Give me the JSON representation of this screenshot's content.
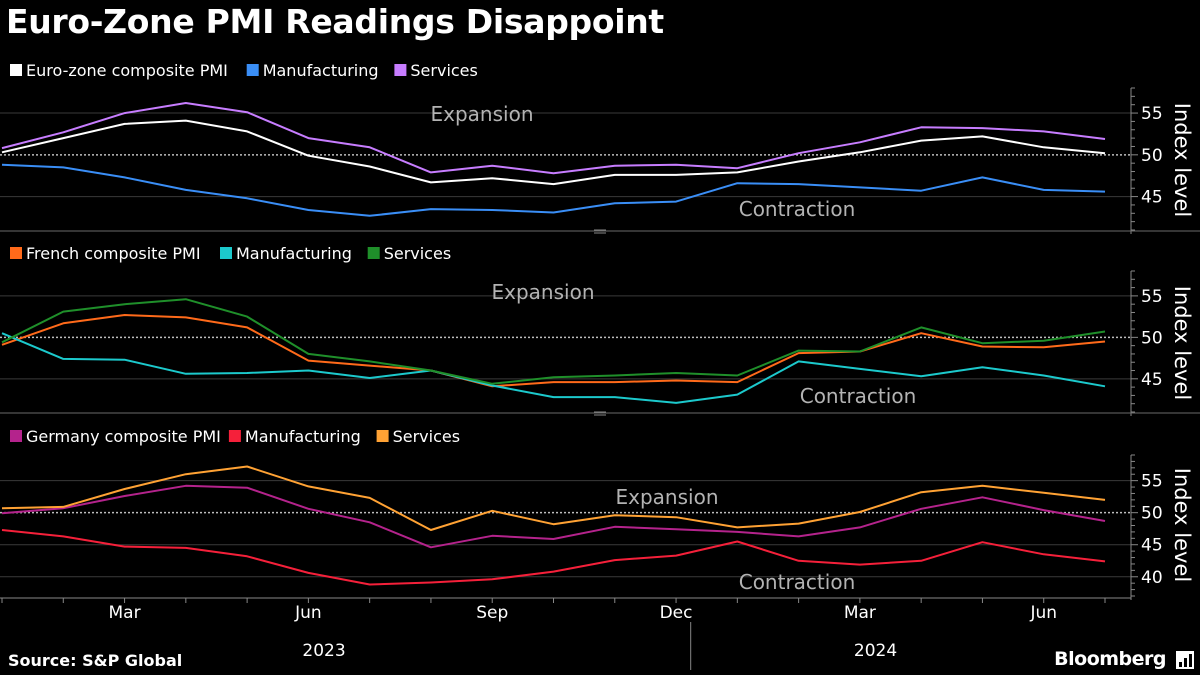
{
  "title": "Euro-Zone PMI Readings Disappoint",
  "source": "Source: S&P Global",
  "brand": "Bloomberg",
  "brand_icon": "bloomberg-terminal-icon",
  "chart_data": [
    {
      "type": "line",
      "ylabel": "Index level",
      "yticks": [
        45,
        50,
        55
      ],
      "ylim": [
        41,
        58
      ],
      "reference_line": 50,
      "annotations": {
        "above": "Expansion",
        "below": "Contraction"
      },
      "series": [
        {
          "name": "Euro-zone composite PMI",
          "color": "#ffffff",
          "values": [
            50.3,
            52.0,
            53.7,
            54.1,
            52.8,
            49.9,
            48.6,
            46.7,
            47.2,
            46.5,
            47.6,
            47.6,
            47.9,
            49.2,
            50.3,
            51.7,
            52.2,
            50.9,
            50.2
          ]
        },
        {
          "name": "Manufacturing",
          "color": "#3a8ef6",
          "values": [
            48.8,
            48.5,
            47.3,
            45.8,
            44.8,
            43.4,
            42.7,
            43.5,
            43.4,
            43.1,
            44.2,
            44.4,
            46.6,
            46.5,
            46.1,
            45.7,
            47.3,
            45.8,
            45.6
          ]
        },
        {
          "name": "Services",
          "color": "#c77dff",
          "values": [
            50.8,
            52.7,
            55.0,
            56.2,
            55.1,
            52.0,
            50.9,
            47.9,
            48.7,
            47.8,
            48.7,
            48.8,
            48.4,
            50.2,
            51.5,
            53.3,
            53.2,
            52.8,
            51.9
          ]
        }
      ]
    },
    {
      "type": "line",
      "ylabel": "Index level",
      "yticks": [
        45,
        50,
        55
      ],
      "ylim": [
        41,
        58
      ],
      "reference_line": 50,
      "annotations": {
        "above": "Expansion",
        "below": "Contraction"
      },
      "series": [
        {
          "name": "French composite PMI",
          "color": "#ff6a1a",
          "values": [
            49.1,
            51.7,
            52.7,
            52.4,
            51.2,
            47.2,
            46.6,
            46.0,
            44.1,
            44.6,
            44.6,
            44.8,
            44.6,
            48.1,
            48.3,
            50.5,
            48.9,
            48.8,
            49.5
          ]
        },
        {
          "name": "Manufacturing",
          "color": "#1cc9cc",
          "values": [
            50.5,
            47.4,
            47.3,
            45.6,
            45.7,
            46.0,
            45.1,
            46.0,
            44.2,
            42.8,
            42.8,
            42.1,
            43.1,
            47.1,
            46.2,
            45.3,
            46.4,
            45.4,
            44.1
          ]
        },
        {
          "name": "Services",
          "color": "#1f8f2a",
          "values": [
            49.4,
            53.1,
            54.0,
            54.6,
            52.5,
            48.0,
            47.1,
            46.0,
            44.4,
            45.2,
            45.4,
            45.7,
            45.4,
            48.4,
            48.3,
            51.2,
            49.3,
            49.6,
            50.7
          ]
        }
      ]
    },
    {
      "type": "line",
      "ylabel": "Index level",
      "yticks": [
        40,
        45,
        50,
        55
      ],
      "ylim": [
        37,
        59
      ],
      "reference_line": 50,
      "annotations": {
        "above": "Expansion",
        "below": "Contraction"
      },
      "series": [
        {
          "name": "Germany composite PMI",
          "color": "#b4238c",
          "values": [
            49.9,
            50.7,
            52.6,
            54.2,
            53.9,
            50.6,
            48.5,
            44.6,
            46.4,
            45.9,
            47.8,
            47.4,
            47.0,
            46.3,
            47.7,
            50.6,
            52.4,
            50.4,
            48.7
          ]
        },
        {
          "name": "Manufacturing",
          "color": "#f5203a",
          "values": [
            47.3,
            46.3,
            44.7,
            44.5,
            43.2,
            40.6,
            38.8,
            39.1,
            39.6,
            40.8,
            42.6,
            43.3,
            45.5,
            42.5,
            41.9,
            42.5,
            45.4,
            43.5,
            42.4
          ]
        },
        {
          "name": "Services",
          "color": "#ffa234",
          "values": [
            50.7,
            50.9,
            53.7,
            56.0,
            57.2,
            54.1,
            52.3,
            47.3,
            50.3,
            48.2,
            49.6,
            49.3,
            47.7,
            48.3,
            50.1,
            53.2,
            54.2,
            53.1,
            52.0
          ]
        }
      ]
    }
  ],
  "x_axis": {
    "categories": [
      "2023-01",
      "2023-02",
      "2023-03",
      "2023-04",
      "2023-05",
      "2023-06",
      "2023-07",
      "2023-08",
      "2023-09",
      "2023-10",
      "2023-11",
      "2023-12",
      "2024-01",
      "2024-02",
      "2024-03",
      "2024-04",
      "2024-05",
      "2024-06",
      "2024-07"
    ],
    "tick_labels": [
      {
        "index": 2,
        "label": "Mar"
      },
      {
        "index": 5,
        "label": "Jun"
      },
      {
        "index": 8,
        "label": "Sep"
      },
      {
        "index": 11,
        "label": "Dec"
      },
      {
        "index": 14,
        "label": "Mar"
      },
      {
        "index": 17,
        "label": "Jun"
      }
    ],
    "year_labels": [
      {
        "center_index": 5.5,
        "label": "2023"
      },
      {
        "center_index": 14.5,
        "label": "2024"
      }
    ]
  }
}
